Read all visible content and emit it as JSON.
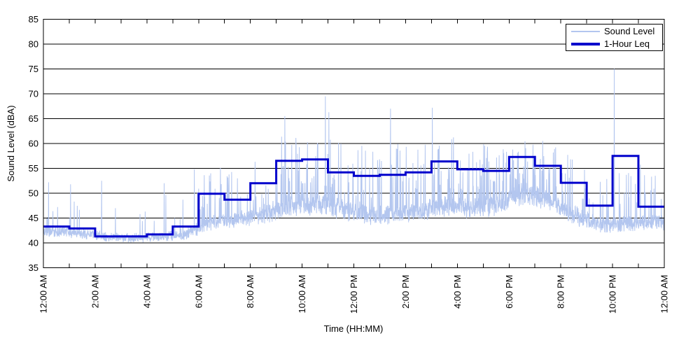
{
  "chart_data": {
    "type": "line",
    "title": "",
    "xlabel": "Time (HH:MM)",
    "ylabel": "Sound Level (dBA)",
    "grid": "horizontal-only",
    "x_axis": {
      "start_hour": 0,
      "end_hour": 24,
      "minor_tick_interval_hours": 1,
      "label_interval_hours": 2,
      "tick_labels": [
        "12:00 AM",
        "2:00 AM",
        "4:00 AM",
        "6:00 AM",
        "8:00 AM",
        "10:00 AM",
        "12:00 PM",
        "2:00 PM",
        "4:00 PM",
        "6:00 PM",
        "8:00 PM",
        "10:00 PM",
        "12:00 AM"
      ]
    },
    "y_axis": {
      "min": 35,
      "max": 85,
      "tick_step": 5,
      "tick_labels": [
        "35",
        "40",
        "45",
        "50",
        "55",
        "60",
        "65",
        "70",
        "75",
        "80",
        "85"
      ]
    },
    "legend": {
      "position": "top-right-inside",
      "entries": [
        {
          "label": "Sound Level",
          "color": "#b3c6ef",
          "weight": "thin"
        },
        {
          "label": "1-Hour Leq",
          "color": "#0000cc",
          "weight": "thick"
        }
      ]
    },
    "series": [
      {
        "name": "Sound Level",
        "type": "noisy-trace",
        "color": "#b3c6ef",
        "samples_per_hour": 120,
        "rng_seed": 20127,
        "hourly_baseline_dBA": [
          42.3,
          41.9,
          41.2,
          41.0,
          41.2,
          41.8,
          44.3,
          44.6,
          45.8,
          47.5,
          48.0,
          46.8,
          45.8,
          45.8,
          46.2,
          47.5,
          47.0,
          47.6,
          49.8,
          48.8,
          45.6,
          43.6,
          43.8,
          44.2
        ],
        "hourly_jitter_dBA": [
          0.9,
          0.8,
          0.7,
          0.7,
          0.7,
          0.9,
          1.2,
          1.2,
          1.4,
          1.8,
          1.8,
          1.6,
          1.5,
          1.5,
          1.5,
          1.6,
          1.6,
          1.6,
          1.8,
          1.7,
          1.4,
          1.2,
          1.2,
          1.2
        ],
        "hourly_spike_prob": [
          0.06,
          0.05,
          0.05,
          0.04,
          0.06,
          0.1,
          0.22,
          0.22,
          0.25,
          0.3,
          0.3,
          0.26,
          0.25,
          0.25,
          0.26,
          0.28,
          0.26,
          0.28,
          0.3,
          0.27,
          0.2,
          0.14,
          0.16,
          0.14
        ],
        "hourly_spike_lo_dBA": [
          45,
          44.5,
          44,
          44,
          44,
          45,
          48,
          48,
          49,
          52,
          52,
          50,
          49,
          49,
          50,
          51,
          50,
          51,
          53,
          52,
          49,
          47,
          48,
          47
        ],
        "hourly_spike_hi_dBA": [
          49.5,
          49,
          48,
          47.5,
          50,
          52,
          55.5,
          54.5,
          57.5,
          63,
          63,
          60,
          59.5,
          60,
          60.5,
          62,
          61,
          60,
          61.5,
          60,
          57.5,
          55,
          58,
          54.5
        ],
        "notable_spikes": [
          {
            "hour": 0.2,
            "dBA": 52.2
          },
          {
            "hour": 1.05,
            "dBA": 51.8
          },
          {
            "hour": 2.25,
            "dBA": 52.5
          },
          {
            "hour": 4.67,
            "dBA": 52.0
          },
          {
            "hour": 5.83,
            "dBA": 54.8
          },
          {
            "hour": 9.33,
            "dBA": 65.5
          },
          {
            "hour": 10.9,
            "dBA": 69.5
          },
          {
            "hour": 11.03,
            "dBA": 66.3
          },
          {
            "hour": 13.42,
            "dBA": 67.0
          },
          {
            "hour": 15.03,
            "dBA": 67.2
          },
          {
            "hour": 19.3,
            "dBA": 60.5
          },
          {
            "hour": 22.07,
            "dBA": 75.0
          }
        ]
      },
      {
        "name": "1-Hour Leq",
        "type": "step",
        "color": "#0000cc",
        "hourly_values_dBA": [
          43.3,
          42.9,
          41.3,
          41.3,
          41.7,
          43.3,
          49.9,
          48.7,
          52.0,
          56.5,
          56.8,
          54.2,
          53.5,
          53.7,
          54.2,
          56.4,
          54.8,
          54.5,
          57.3,
          55.5,
          52.1,
          47.5,
          57.5,
          47.3
        ]
      }
    ]
  }
}
